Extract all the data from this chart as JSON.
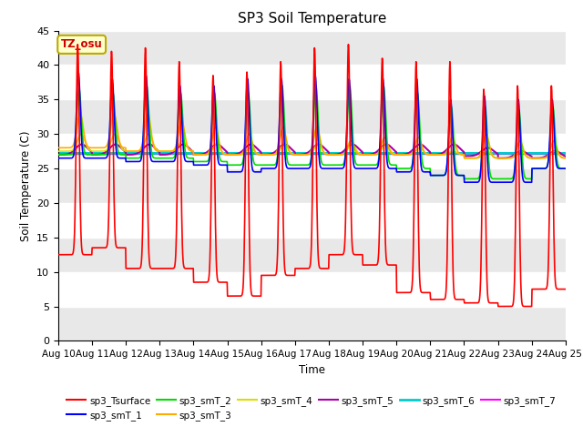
{
  "title": "SP3 Soil Temperature",
  "ylabel": "Soil Temperature (C)",
  "xlabel": "Time",
  "tz_label": "TZ_osu",
  "ylim": [
    0,
    45
  ],
  "n_days": 15,
  "fig_facecolor": "#ffffff",
  "plot_facecolor": "#ffffff",
  "series_colors": {
    "sp3_Tsurface": "#ff0000",
    "sp3_smT_1": "#0000ff",
    "sp3_smT_2": "#00dd00",
    "sp3_smT_3": "#ffaa00",
    "sp3_smT_4": "#dddd00",
    "sp3_smT_5": "#aa00aa",
    "sp3_smT_6": "#00cccc",
    "sp3_smT_7": "#ff00ff"
  },
  "band_color": "#e8e8e8",
  "tick_labels": [
    "Aug 10",
    "Aug 11",
    "Aug 12",
    "Aug 13",
    "Aug 14",
    "Aug 15",
    "Aug 16",
    "Aug 17",
    "Aug 18",
    "Aug 19",
    "Aug 20",
    "Aug 21",
    "Aug 22",
    "Aug 23",
    "Aug 24",
    "Aug 25"
  ],
  "yticks": [
    0,
    5,
    10,
    15,
    20,
    25,
    30,
    35,
    40,
    45
  ]
}
